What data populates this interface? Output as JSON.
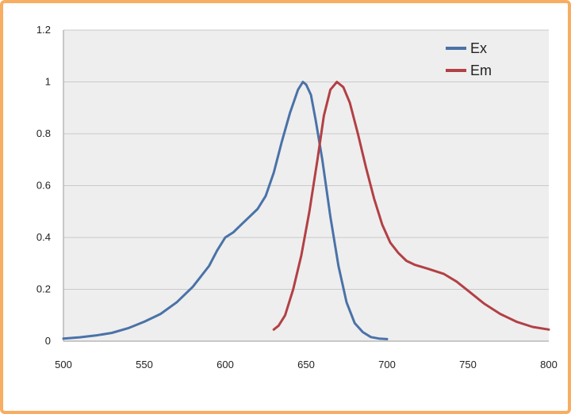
{
  "chart_data": {
    "type": "line",
    "title": "",
    "xlabel": "",
    "ylabel": "",
    "xlim": [
      500,
      800
    ],
    "ylim": [
      0,
      1.2
    ],
    "x_ticks": [
      "500",
      "550",
      "600",
      "650",
      "700",
      "750",
      "800"
    ],
    "y_ticks": [
      "0",
      "0.2",
      "0.4",
      "0.6",
      "0.8",
      "1",
      "1.2"
    ],
    "grid": true,
    "legend_position": "top-right",
    "series": [
      {
        "name": "Ex",
        "color": "#4a72a8",
        "points": [
          [
            500,
            0.01
          ],
          [
            510,
            0.015
          ],
          [
            520,
            0.022
          ],
          [
            530,
            0.032
          ],
          [
            540,
            0.05
          ],
          [
            550,
            0.075
          ],
          [
            560,
            0.105
          ],
          [
            570,
            0.15
          ],
          [
            580,
            0.21
          ],
          [
            590,
            0.29
          ],
          [
            595,
            0.35
          ],
          [
            600,
            0.4
          ],
          [
            605,
            0.42
          ],
          [
            610,
            0.45
          ],
          [
            615,
            0.48
          ],
          [
            620,
            0.51
          ],
          [
            625,
            0.56
          ],
          [
            630,
            0.65
          ],
          [
            635,
            0.77
          ],
          [
            640,
            0.88
          ],
          [
            645,
            0.97
          ],
          [
            648,
            1.0
          ],
          [
            650,
            0.99
          ],
          [
            653,
            0.95
          ],
          [
            656,
            0.85
          ],
          [
            660,
            0.7
          ],
          [
            665,
            0.48
          ],
          [
            670,
            0.29
          ],
          [
            675,
            0.15
          ],
          [
            680,
            0.07
          ],
          [
            685,
            0.035
          ],
          [
            690,
            0.016
          ],
          [
            695,
            0.01
          ],
          [
            700,
            0.008
          ]
        ]
      },
      {
        "name": "Em",
        "color": "#b24045",
        "points": [
          [
            630,
            0.045
          ],
          [
            633,
            0.06
          ],
          [
            637,
            0.1
          ],
          [
            642,
            0.2
          ],
          [
            647,
            0.33
          ],
          [
            652,
            0.5
          ],
          [
            657,
            0.7
          ],
          [
            661,
            0.87
          ],
          [
            665,
            0.97
          ],
          [
            669,
            1.0
          ],
          [
            673,
            0.98
          ],
          [
            677,
            0.92
          ],
          [
            682,
            0.8
          ],
          [
            687,
            0.67
          ],
          [
            692,
            0.55
          ],
          [
            697,
            0.45
          ],
          [
            702,
            0.38
          ],
          [
            707,
            0.34
          ],
          [
            712,
            0.31
          ],
          [
            717,
            0.295
          ],
          [
            725,
            0.28
          ],
          [
            735,
            0.26
          ],
          [
            743,
            0.23
          ],
          [
            750,
            0.195
          ],
          [
            760,
            0.145
          ],
          [
            770,
            0.105
          ],
          [
            780,
            0.075
          ],
          [
            790,
            0.055
          ],
          [
            800,
            0.045
          ]
        ]
      }
    ]
  }
}
